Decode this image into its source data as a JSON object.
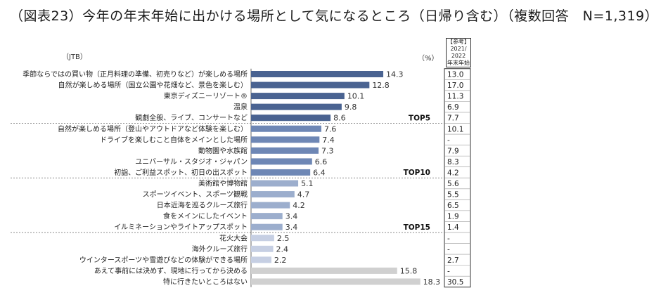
{
  "title": "（図表23）今年の年末年始に出かける場所として気になるところ（日帰り含む）（複数回答　N=1,319）",
  "source": "（JTB）",
  "unit": "（%）",
  "ref_header": [
    "【参考】",
    "2021/",
    "2022",
    "年末年始"
  ],
  "tier_labels": [
    "TOP5",
    "TOP10",
    "TOP15"
  ],
  "colors": {
    "tier1": "#4a6391",
    "tier2": "#6e87b5",
    "tier3": "#9caecd",
    "tier4": "#c6cfe3",
    "other": "#d0d0d0"
  },
  "chart_data": {
    "type": "bar",
    "orientation": "horizontal",
    "title": "今年の年末年始に出かける場所として気になるところ（日帰り含む）",
    "xlabel": "（%）",
    "xlim": [
      0,
      20
    ],
    "categories": [
      "季節ならではの買い物（正月料理の準備、初売りなど）が楽しめる場所",
      "自然が楽しめる場所（国立公園や花畑など、景色を楽しむ）",
      "東京ディズニーリゾート®",
      "温泉",
      "観劇全般、ライブ、コンサートなど",
      "自然が楽しめる場所（登山やアウトドアなど体験を楽しむ）",
      "ドライブを楽しむこと自体をメインとした場所",
      "動物園や水族館",
      "ユニバーサル・スタジオ・ジャパン",
      "初詣、ご利益スポット、初日の出スポット",
      "美術館や博物館",
      "スポーツイベント、スポーツ観戦",
      "日本近海を巡るクルーズ旅行",
      "食をメインにしたイベント",
      "イルミネーションやライトアップスポット",
      "花火大会",
      "海外クルーズ旅行",
      "ウインタースポーツや雪遊びなどの体験ができる場所",
      "あえて事前には決めず、現地に行ってから決める",
      "特に行きたいところはない"
    ],
    "values": [
      14.3,
      12.8,
      10.1,
      9.8,
      8.6,
      7.6,
      7.4,
      7.3,
      6.6,
      6.4,
      5.1,
      4.7,
      4.2,
      3.4,
      3.4,
      2.5,
      2.4,
      2.2,
      15.8,
      18.3
    ],
    "value_labels": [
      "14.3",
      "12.8",
      "10.1",
      "9.8",
      "8.6",
      "7.6",
      "7.4",
      "7.3",
      "6.6",
      "6.4",
      "5.1",
      "4.7",
      "4.2",
      "3.4",
      "3.4",
      "2.5",
      "2.4",
      "2.2",
      "15.8",
      "18.3"
    ],
    "tiers": [
      1,
      1,
      1,
      1,
      1,
      2,
      2,
      2,
      2,
      2,
      3,
      3,
      3,
      3,
      3,
      4,
      4,
      4,
      5,
      5
    ],
    "reference_2021_2022": [
      "13.0",
      "17.0",
      "11.3",
      "6.9",
      "7.7",
      "10.1",
      "-",
      "7.9",
      "8.3",
      "4.2",
      "5.6",
      "5.5",
      "6.5",
      "1.9",
      "1.4",
      "-",
      "-",
      "2.7",
      "-",
      "30.5"
    ]
  }
}
